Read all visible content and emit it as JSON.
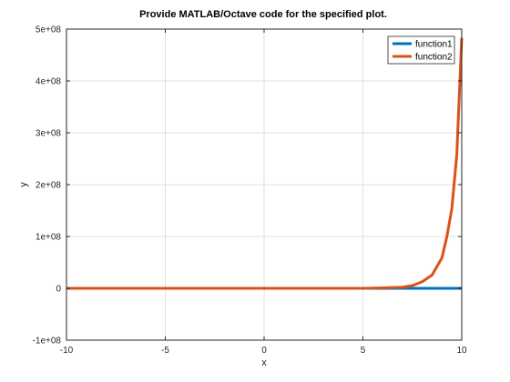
{
  "chart_data": {
    "type": "line",
    "title": "Provide MATLAB/Octave code for the specified plot.",
    "xlabel": "x",
    "ylabel": "y",
    "xlim": [
      -10,
      10
    ],
    "ylim": [
      -100000000,
      500000000
    ],
    "xticks": [
      -10,
      -5,
      0,
      5,
      10
    ],
    "xtick_labels": [
      "-10",
      "-5",
      "0",
      "5",
      "10"
    ],
    "yticks": [
      -100000000,
      0,
      100000000,
      200000000,
      300000000,
      400000000,
      500000000
    ],
    "ytick_labels": [
      "-1e+08",
      "0",
      "1e+08",
      "2e+08",
      "3e+08",
      "4e+08",
      "5e+08"
    ],
    "grid": true,
    "legend_position": "top-right",
    "series": [
      {
        "name": "function1",
        "color": "#0072bd",
        "x": [
          -10,
          -8,
          -6,
          -4,
          -2,
          0,
          2,
          4,
          6,
          8,
          10
        ],
        "y": [
          0,
          0,
          0,
          0,
          0,
          0,
          0,
          0,
          0,
          0,
          0
        ]
      },
      {
        "name": "function2",
        "color": "#d95319",
        "x": [
          -10,
          -5,
          0,
          5,
          6,
          7,
          7.5,
          8,
          8.5,
          9,
          9.25,
          9.5,
          9.75,
          10
        ],
        "y": [
          0,
          0,
          0,
          0,
          800000,
          2200000,
          5300000,
          12700000,
          25600000,
          59000000,
          100000000,
          154000000,
          258000000,
          483000000
        ]
      }
    ]
  }
}
